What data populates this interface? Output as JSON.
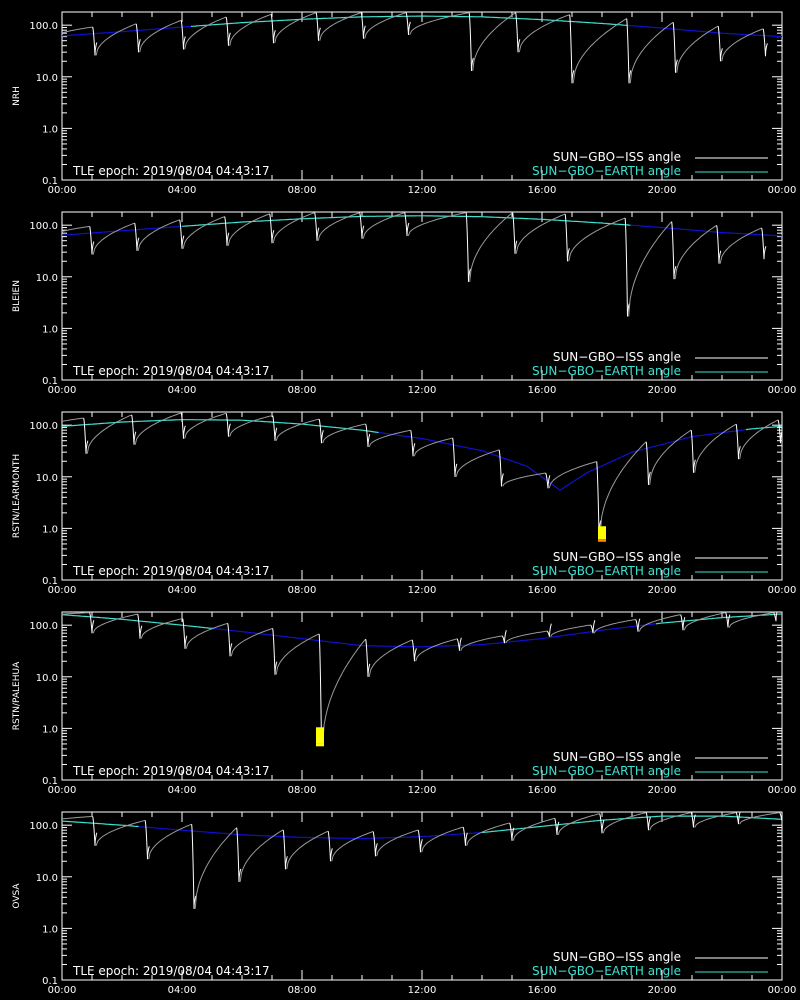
{
  "legend": {
    "iss_label": "SUN−GBO−ISS angle",
    "earth_label": "SUN−GBO−EARTH angle"
  },
  "tle_label": "TLE epoch: 2019/08/04 04:43:17",
  "x_ticks": [
    "00:00",
    "04:00",
    "08:00",
    "12:00",
    "16:00",
    "20:00",
    "00:00"
  ],
  "y_ticks": [
    "0.1",
    "1.0",
    "10.0",
    "100.0"
  ],
  "colors": {
    "iss": "#ffffff",
    "earth_visible": "#40e0d0",
    "earth_hidden": "#1010d0",
    "axes": "#ffffff",
    "marker_yellow": "#ffff00",
    "marker_orange": "#ff8800"
  },
  "chart_data": [
    {
      "type": "line",
      "ylabel": "NRH",
      "xlim": [
        0,
        24
      ],
      "ylim": [
        0.1,
        180
      ],
      "yscale": "log",
      "earth": {
        "x": [
          0,
          2,
          4,
          6,
          8,
          10,
          12,
          14,
          16,
          18,
          20,
          22,
          24
        ],
        "y": [
          62,
          75,
          92,
          112,
          130,
          145,
          150,
          145,
          128,
          108,
          88,
          70,
          60
        ],
        "visible_ranges": [
          [
            4.3,
            18.8
          ]
        ]
      },
      "iss_dips": {
        "time": [
          1.1,
          2.55,
          4.05,
          5.55,
          7.05,
          8.55,
          10.05,
          11.55,
          13.65,
          15.2,
          17.0,
          18.9,
          20.45,
          21.95,
          23.45
        ],
        "min": [
          26,
          30,
          34,
          40,
          45,
          50,
          55,
          65,
          13,
          30,
          7.5,
          7.5,
          12,
          20,
          25
        ]
      },
      "markers": []
    },
    {
      "type": "line",
      "ylabel": "BLEIEN",
      "xlim": [
        0,
        24
      ],
      "ylim": [
        0.1,
        180
      ],
      "yscale": "log",
      "earth": {
        "x": [
          0,
          2,
          4,
          6,
          8,
          10,
          12,
          14,
          16,
          18,
          20,
          22,
          24
        ],
        "y": [
          64,
          78,
          95,
          115,
          133,
          148,
          152,
          146,
          130,
          110,
          90,
          72,
          62
        ],
        "visible_ranges": [
          [
            4.0,
            18.9
          ]
        ]
      },
      "iss_dips": {
        "time": [
          1.0,
          2.5,
          4.0,
          5.5,
          7.0,
          8.5,
          10.0,
          11.5,
          13.55,
          15.1,
          16.85,
          18.85,
          20.4,
          21.9,
          23.4
        ],
        "min": [
          27,
          32,
          35,
          40,
          45,
          50,
          55,
          62,
          8,
          28,
          20,
          1.7,
          9,
          18,
          22
        ]
      },
      "markers": []
    },
    {
      "type": "line",
      "ylabel": "RSTN/LEARMONTH",
      "xlim": [
        0,
        24
      ],
      "ylim": [
        0.1,
        180
      ],
      "yscale": "log",
      "earth": {
        "x": [
          0,
          2,
          4,
          6,
          8,
          10,
          12,
          14,
          15.5,
          16.6,
          17.5,
          19,
          21,
          23,
          24
        ],
        "y": [
          95,
          115,
          128,
          125,
          105,
          80,
          55,
          32,
          16,
          5.5,
          12,
          30,
          60,
          85,
          95
        ],
        "visible_ranges": [
          [
            0.0,
            10.5
          ],
          [
            22.8,
            24.0
          ]
        ]
      },
      "iss_dips": {
        "time": [
          0.8,
          2.4,
          4.05,
          5.55,
          7.1,
          8.65,
          10.2,
          11.7,
          13.1,
          14.65,
          16.2,
          17.9,
          19.55,
          21.05,
          22.55,
          23.95
        ],
        "min": [
          28,
          42,
          55,
          60,
          50,
          45,
          38,
          25,
          10,
          6.5,
          6.0,
          0.8,
          7,
          12,
          22,
          45
        ]
      },
      "markers": [
        {
          "time": 18.0,
          "ymin": 0.55,
          "ymax": 1.1,
          "color": "#ff8800",
          "top_color": "#ffff00",
          "split": 0.62
        }
      ]
    },
    {
      "type": "line",
      "ylabel": "RSTN/PALEHUA",
      "xlim": [
        0,
        24
      ],
      "ylim": [
        0.1,
        180
      ],
      "yscale": "log",
      "earth": {
        "x": [
          0,
          2,
          4,
          6,
          8,
          10,
          12,
          14,
          16,
          18,
          20,
          22,
          24
        ],
        "y": [
          160,
          130,
          100,
          75,
          55,
          40,
          38,
          42,
          55,
          80,
          110,
          140,
          165
        ],
        "visible_ranges": [
          [
            0.0,
            5.0
          ],
          [
            19.8,
            24.0
          ]
        ]
      },
      "iss_dips": {
        "time": [
          1.0,
          2.6,
          4.1,
          5.6,
          7.1,
          8.65,
          10.2,
          11.75,
          13.25,
          14.75,
          16.25,
          17.7,
          19.2,
          20.7,
          22.2,
          23.8
        ],
        "min": [
          70,
          55,
          35,
          25,
          11,
          0.5,
          10,
          20,
          32,
          45,
          60,
          70,
          75,
          80,
          90,
          120
        ]
      },
      "markers": [
        {
          "time": 8.6,
          "ymin": 0.45,
          "ymax": 1.05,
          "color": "#ffff00",
          "top_color": "#ffff00",
          "split": 0.5
        }
      ]
    },
    {
      "type": "line",
      "ylabel": "OVSA",
      "xlim": [
        0,
        24
      ],
      "ylim": [
        0.1,
        180
      ],
      "yscale": "log",
      "earth": {
        "x": [
          0,
          2,
          4,
          6,
          8,
          10,
          12,
          14,
          16,
          18,
          20,
          22,
          24
        ],
        "y": [
          120,
          100,
          80,
          65,
          58,
          55,
          60,
          72,
          95,
          125,
          150,
          150,
          130
        ],
        "visible_ranges": [
          [
            0.0,
            2.5
          ],
          [
            14.0,
            24.0
          ]
        ]
      },
      "iss_dips": {
        "time": [
          1.1,
          2.85,
          4.4,
          5.9,
          7.45,
          8.95,
          10.45,
          11.95,
          13.45,
          15.0,
          16.5,
          18.0,
          19.55,
          21.05,
          22.55,
          24.0
        ],
        "min": [
          40,
          22,
          2.4,
          8,
          14,
          20,
          25,
          30,
          40,
          50,
          65,
          70,
          80,
          90,
          105,
          120
        ]
      },
      "markers": []
    }
  ]
}
